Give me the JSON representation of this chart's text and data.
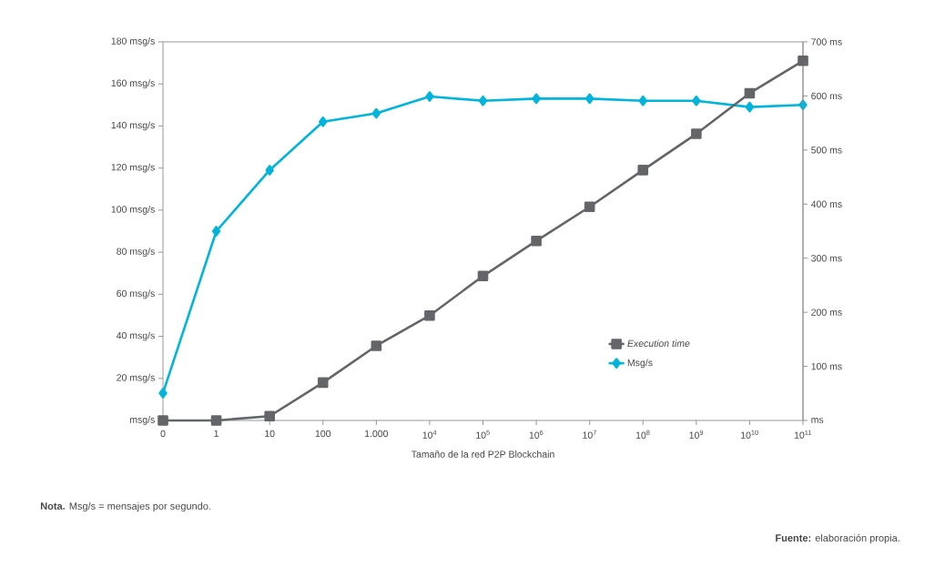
{
  "chart_data": {
    "type": "line",
    "categories": [
      "0",
      "1",
      "10",
      "100",
      "1.000",
      "10$^{4}$",
      "10$^{5}$",
      "10$^{6}$",
      "10$^{7}$",
      "10$^{8}$",
      "10$^{9}$",
      "10$^{10}$",
      "10$^{11}$"
    ],
    "xlabel": "Tamaño de la red P2P Blockchain",
    "series": [
      {
        "name": "Execution time",
        "color": "#646569",
        "axis": "y2",
        "marker": "square",
        "values": [
          0,
          0,
          8,
          70,
          138,
          194,
          267,
          332,
          395,
          463,
          530,
          605,
          665
        ]
      },
      {
        "name": "Msg/s",
        "color": "#00b4dc",
        "marker": "diamond",
        "values": [
          13,
          90,
          119,
          142,
          146,
          154,
          152,
          153,
          153,
          152,
          152,
          149,
          150
        ]
      }
    ],
    "ylim": [
      0,
      180
    ],
    "yticks": [
      {
        "value": 0,
        "label": "msg/s"
      },
      {
        "value": 20,
        "label": "20 msg/s"
      },
      {
        "value": 40,
        "label": "40 msg/s"
      },
      {
        "value": 60,
        "label": "60 msg/s"
      },
      {
        "value": 80,
        "label": "80 msg/s"
      },
      {
        "value": 100,
        "label": "100 msg/s"
      },
      {
        "value": 120,
        "label": "120 msg/s"
      },
      {
        "value": 140,
        "label": "140 msg/s"
      },
      {
        "value": 160,
        "label": "160 msg/s"
      },
      {
        "value": 180,
        "label": "180 msg/s"
      }
    ],
    "y2lim": [
      0,
      700
    ],
    "y2ticks": [
      {
        "value": 0,
        "label": "ms"
      },
      {
        "value": 100,
        "label": "100 ms"
      },
      {
        "value": 200,
        "label": "200 ms"
      },
      {
        "value": 300,
        "label": "300 ms"
      },
      {
        "value": 400,
        "label": "400 ms"
      },
      {
        "value": 500,
        "label": "500 ms"
      },
      {
        "value": 600,
        "label": "600 ms"
      },
      {
        "value": 700,
        "label": "700 ms"
      }
    ],
    "legend": "bottom right",
    "annotations": [
      "**Nota.** Msg/s = mensajes por segundo.",
      "**Fuente:** elaboración propia."
    ]
  }
}
